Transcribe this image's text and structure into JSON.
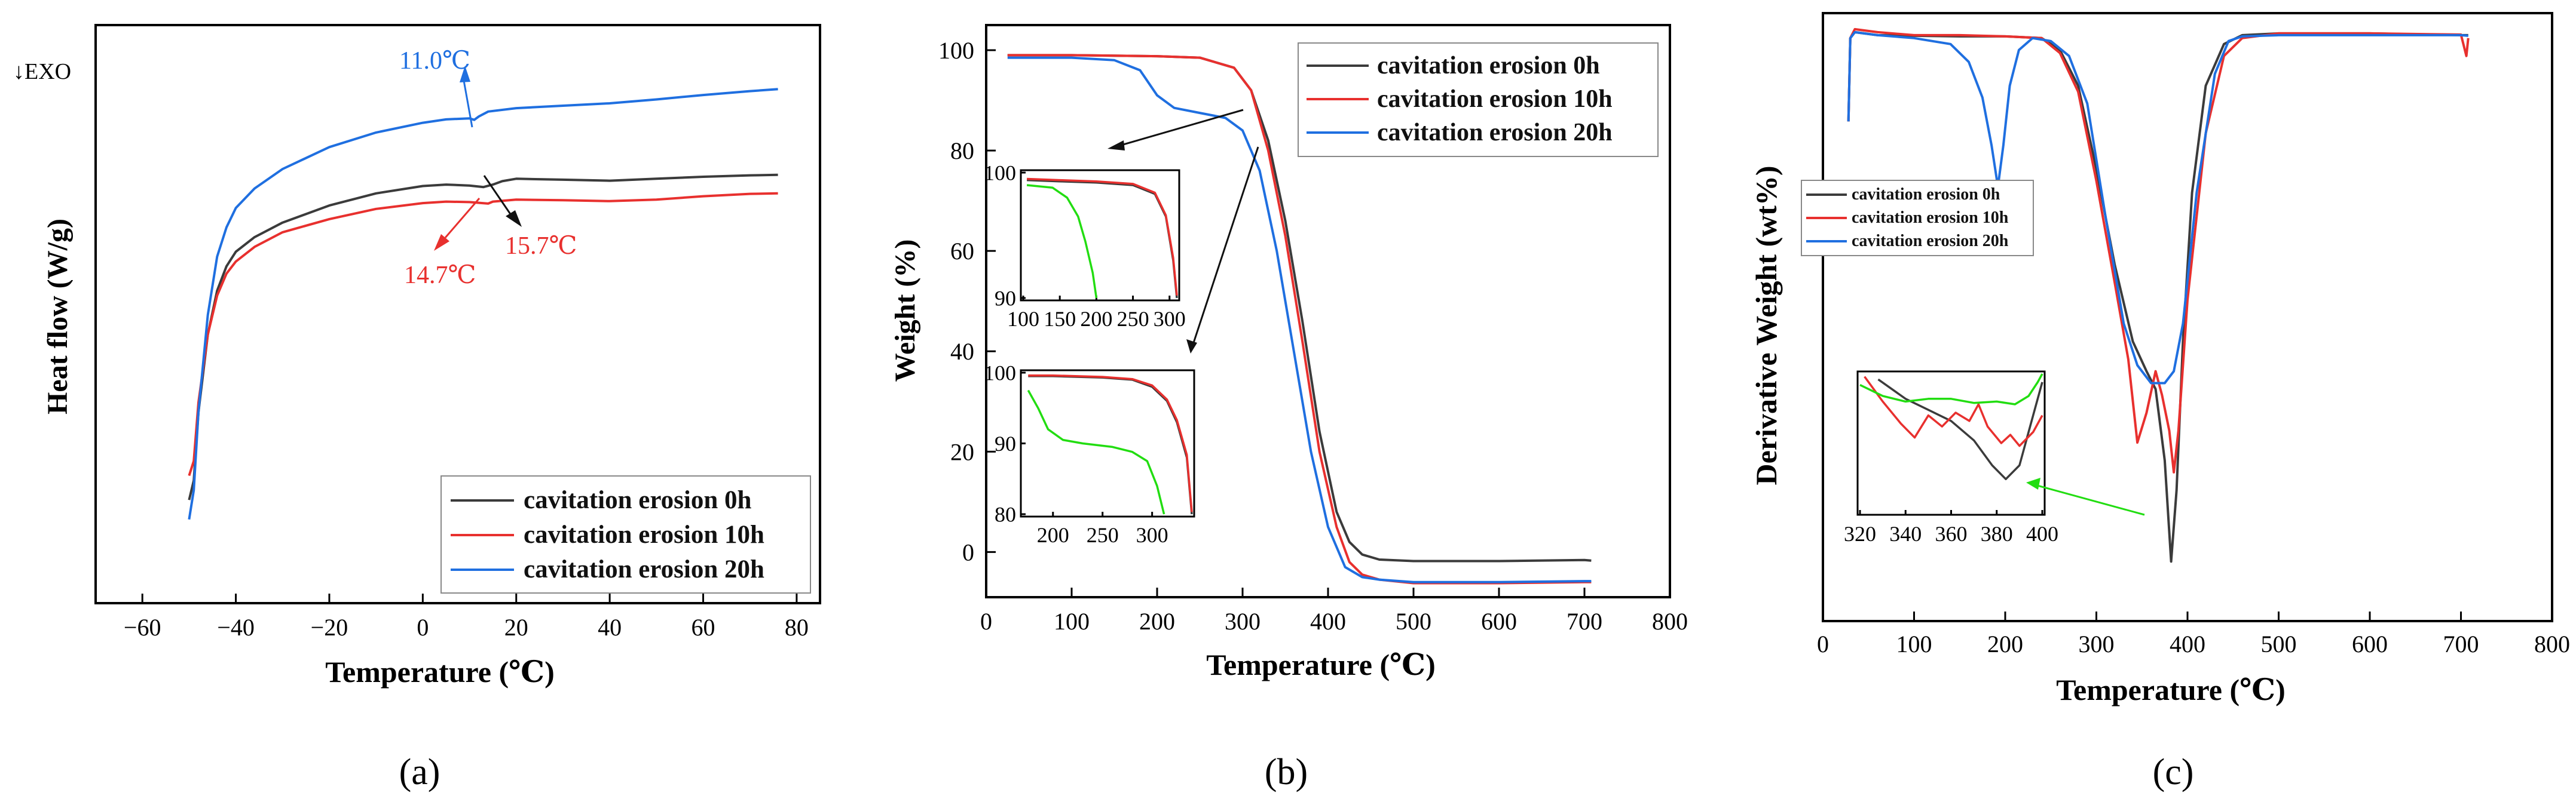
{
  "colors": {
    "h0": "#3b3b3b",
    "h10": "#e8302e",
    "h20": "#1f6fe0",
    "green": "#22dd11",
    "axis": "#000000"
  },
  "chart_data": [
    {
      "panel": "(a)",
      "type": "line",
      "title": "",
      "xlabel": "Temperature (℃)",
      "ylabel": "Heat flow (W/g)",
      "corner_label": "↓EXO",
      "xlim": [
        -70,
        85
      ],
      "xticks": [
        -60,
        -40,
        -20,
        0,
        20,
        40,
        60,
        80
      ],
      "ylim": [
        0,
        100
      ],
      "legend_position": "bottom-right",
      "series": [
        {
          "name": "cavitation erosion 0h",
          "color_key": "h0",
          "x": [
            -50,
            -49,
            -48,
            -46,
            -44,
            -42,
            -40,
            -36,
            -30,
            -20,
            -10,
            0,
            5,
            10,
            13,
            15,
            17,
            20,
            30,
            40,
            50,
            60,
            70,
            76
          ],
          "y": [
            12,
            16,
            30,
            46,
            55,
            60,
            63,
            66,
            69,
            72.5,
            75,
            76.5,
            76.8,
            76.6,
            76.3,
            76.8,
            77.5,
            78,
            77.8,
            77.6,
            78,
            78.4,
            78.7,
            78.8
          ]
        },
        {
          "name": "cavitation erosion 10h",
          "color_key": "h10",
          "x": [
            -50,
            -49,
            -48,
            -46,
            -44,
            -42,
            -40,
            -36,
            -30,
            -20,
            -10,
            0,
            5,
            10,
            14,
            15,
            20,
            30,
            40,
            50,
            60,
            70,
            76
          ],
          "y": [
            17,
            20,
            32,
            46,
            54,
            58.5,
            61,
            64,
            67,
            69.7,
            71.8,
            73,
            73.3,
            73.2,
            72.9,
            73.3,
            73.7,
            73.6,
            73.4,
            73.7,
            74.4,
            74.9,
            75
          ]
        },
        {
          "name": "cavitation erosion 20h",
          "color_key": "h20",
          "x": [
            -50,
            -49,
            -48,
            -46,
            -44,
            -42,
            -40,
            -36,
            -30,
            -20,
            -10,
            0,
            5,
            10,
            11,
            12,
            14,
            20,
            30,
            40,
            50,
            60,
            70,
            76
          ],
          "y": [
            8,
            14,
            30,
            50,
            62,
            68,
            72,
            76,
            80,
            84.5,
            87.5,
            89.5,
            90.2,
            90.4,
            90.1,
            90.8,
            91.8,
            92.5,
            93,
            93.5,
            94.3,
            95.2,
            96,
            96.4
          ]
        }
      ],
      "annotations": [
        {
          "text": "11.0℃",
          "color_key": "h20",
          "x": 12,
          "y": 90
        },
        {
          "text": "15.7℃",
          "color_key": "h0",
          "x": 15.7,
          "y": 76.8
        },
        {
          "text": "14.7℃",
          "color_key": "h10",
          "x": 14.7,
          "y": 73.3
        }
      ]
    },
    {
      "panel": "(b)",
      "type": "line",
      "title": "",
      "xlabel": "Temperature (℃)",
      "ylabel": "Weight (%)",
      "xlim": [
        0,
        800
      ],
      "xticks": [
        0,
        100,
        200,
        300,
        400,
        500,
        600,
        700,
        800
      ],
      "ylim": [
        -9,
        105
      ],
      "yticks": [
        0,
        20,
        40,
        60,
        80,
        100
      ],
      "legend_position": "top-right",
      "series": [
        {
          "name": "cavitation erosion 0h",
          "color_key": "h0",
          "x": [
            25,
            100,
            200,
            250,
            290,
            310,
            330,
            350,
            370,
            390,
            410,
            425,
            440,
            460,
            500,
            600,
            700,
            708
          ],
          "y": [
            99,
            99,
            98.8,
            98.5,
            96.5,
            92,
            82,
            66,
            46,
            24,
            8,
            2,
            -0.5,
            -1.5,
            -1.8,
            -1.8,
            -1.6,
            -1.7
          ]
        },
        {
          "name": "cavitation erosion 10h",
          "color_key": "h10",
          "x": [
            25,
            100,
            200,
            250,
            290,
            310,
            330,
            350,
            370,
            390,
            410,
            425,
            440,
            460,
            500,
            600,
            700,
            708
          ],
          "y": [
            99,
            99,
            98.8,
            98.5,
            96.5,
            92,
            80,
            63,
            42,
            20,
            5,
            -2,
            -4.5,
            -5.5,
            -6.2,
            -6.2,
            -6,
            -6
          ]
        },
        {
          "name": "cavitation erosion 20h",
          "color_key": "h20",
          "x": [
            25,
            100,
            150,
            180,
            200,
            220,
            250,
            280,
            300,
            320,
            340,
            360,
            380,
            400,
            420,
            440,
            460,
            500,
            600,
            700,
            708
          ],
          "y": [
            98.5,
            98.5,
            98,
            96,
            91,
            88.5,
            87.5,
            86.5,
            84,
            76,
            60,
            40,
            20,
            5,
            -3,
            -5,
            -5.5,
            -6,
            -6,
            -5.8,
            -5.8
          ]
        }
      ],
      "insets": [
        {
          "xlim": [
            100,
            310
          ],
          "xticks": [
            100,
            150,
            200,
            250,
            300
          ],
          "ylim": [
            90,
            100
          ],
          "yticks": [
            90,
            100
          ],
          "series": [
            {
              "name": "cavitation erosion 0h",
              "color_key": "h0",
              "x": [
                105,
                150,
                200,
                250,
                280,
                295,
                305,
                310
              ],
              "y": [
                99.4,
                99.3,
                99.2,
                99,
                98.3,
                96.5,
                93,
                90
              ]
            },
            {
              "name": "cavitation erosion 10h",
              "color_key": "h10",
              "x": [
                105,
                150,
                200,
                250,
                280,
                295,
                305,
                310
              ],
              "y": [
                99.5,
                99.4,
                99.3,
                99.1,
                98.4,
                96.6,
                93.2,
                90.2
              ]
            },
            {
              "name": "cavitation erosion 20h",
              "color_key": "green",
              "x": [
                105,
                140,
                160,
                175,
                185,
                195,
                200
              ],
              "y": [
                99,
                98.8,
                98,
                96.5,
                94.5,
                92,
                90
              ]
            }
          ]
        },
        {
          "xlim": [
            170,
            340
          ],
          "xticks": [
            200,
            250,
            300
          ],
          "ylim": [
            80,
            100
          ],
          "yticks": [
            80,
            90,
            100
          ],
          "series": [
            {
              "name": "cavitation erosion 0h",
              "color_key": "h0",
              "x": [
                175,
                200,
                250,
                280,
                300,
                315,
                325,
                335,
                340
              ],
              "y": [
                99.5,
                99.5,
                99.3,
                99,
                98,
                96,
                93,
                88,
                80
              ]
            },
            {
              "name": "cavitation erosion 10h",
              "color_key": "h10",
              "x": [
                175,
                200,
                250,
                280,
                300,
                315,
                325,
                335,
                340
              ],
              "y": [
                99.6,
                99.6,
                99.4,
                99.1,
                98.2,
                96.2,
                93.3,
                88.4,
                80.3
              ]
            },
            {
              "name": "cavitation erosion 20h",
              "color_key": "green",
              "x": [
                175,
                185,
                195,
                210,
                230,
                260,
                280,
                295,
                305,
                312
              ],
              "y": [
                97.5,
                95,
                92,
                90.5,
                90,
                89.5,
                88.8,
                87.5,
                84,
                80
              ]
            }
          ]
        }
      ]
    },
    {
      "panel": "(c)",
      "type": "line",
      "title": "",
      "xlabel": "Temperature (℃)",
      "ylabel": "Derivative Weight (wt%)",
      "xlim": [
        0,
        800
      ],
      "xticks": [
        0,
        100,
        200,
        300,
        400,
        500,
        600,
        700,
        800
      ],
      "ylim": [
        0,
        100
      ],
      "legend_position": "center-left",
      "series": [
        {
          "name": "cavitation erosion 0h",
          "color_key": "h0",
          "x": [
            28,
            30,
            35,
            60,
            100,
            150,
            200,
            240,
            260,
            280,
            300,
            320,
            340,
            355,
            365,
            375,
            382,
            388,
            395,
            405,
            420,
            440,
            460,
            500,
            600,
            700,
            708
          ],
          "y": [
            82,
            96,
            97,
            96.5,
            96.4,
            96.3,
            96.3,
            96,
            94,
            88,
            74,
            58,
            45,
            40,
            37,
            25,
            8,
            20,
            45,
            70,
            88,
            95,
            96.5,
            96.8,
            96.8,
            96.5,
            96.5
          ]
        },
        {
          "name": "cavitation erosion 10h",
          "color_key": "h10",
          "x": [
            28,
            30,
            35,
            60,
            100,
            150,
            200,
            240,
            260,
            280,
            300,
            320,
            335,
            345,
            355,
            365,
            372,
            380,
            385,
            390,
            400,
            420,
            440,
            460,
            500,
            600,
            700,
            706,
            708
          ],
          "y": [
            82,
            96,
            97.5,
            97,
            96.5,
            96.5,
            96.3,
            96,
            93.5,
            87,
            72,
            55,
            42,
            28,
            33,
            40,
            36,
            30,
            23,
            30,
            52,
            80,
            93,
            96,
            96.8,
            96.8,
            96.6,
            93,
            96
          ]
        },
        {
          "name": "cavitation erosion 20h",
          "color_key": "h20",
          "x": [
            28,
            30,
            35,
            60,
            100,
            140,
            160,
            175,
            185,
            192,
            198,
            205,
            215,
            230,
            250,
            270,
            290,
            310,
            330,
            345,
            360,
            375,
            385,
            395,
            410,
            430,
            445,
            460,
            500,
            600,
            700,
            708
          ],
          "y": [
            82,
            96,
            97,
            96.5,
            96,
            95,
            92,
            86,
            78,
            71,
            78,
            88,
            94,
            96,
            95.5,
            93,
            85,
            66,
            48,
            41,
            38,
            38,
            40,
            48,
            70,
            90,
            95.5,
            96.3,
            96.5,
            96.5,
            96.5,
            96.4
          ]
        }
      ],
      "insets": [
        {
          "xlim": [
            320,
            400
          ],
          "xticks": [
            320,
            340,
            360,
            380,
            400
          ],
          "series": [
            {
              "name": "cavitation erosion 0h",
              "color_key": "h0",
              "x": [
                328,
                340,
                350,
                360,
                370,
                378,
                384,
                390,
                395,
                400
              ],
              "y": [
                96,
                82,
                74,
                66,
                52,
                34,
                24,
                34,
                64,
                94
              ]
            },
            {
              "name": "cavitation erosion 10h",
              "color_key": "h10",
              "x": [
                322,
                330,
                338,
                344,
                350,
                356,
                362,
                368,
                372,
                376,
                382,
                386,
                390,
                396,
                400
              ],
              "y": [
                98,
                80,
                64,
                54,
                70,
                62,
                72,
                66,
                78,
                62,
                50,
                56,
                48,
                58,
                70
              ]
            },
            {
              "name": "cavitation erosion 20h",
              "color_key": "green",
              "x": [
                320,
                330,
                340,
                350,
                360,
                370,
                380,
                388,
                394,
                398,
                400
              ],
              "y": [
                92,
                84,
                80,
                82,
                82,
                79,
                80,
                78,
                84,
                94,
                100
              ]
            }
          ]
        }
      ]
    }
  ]
}
